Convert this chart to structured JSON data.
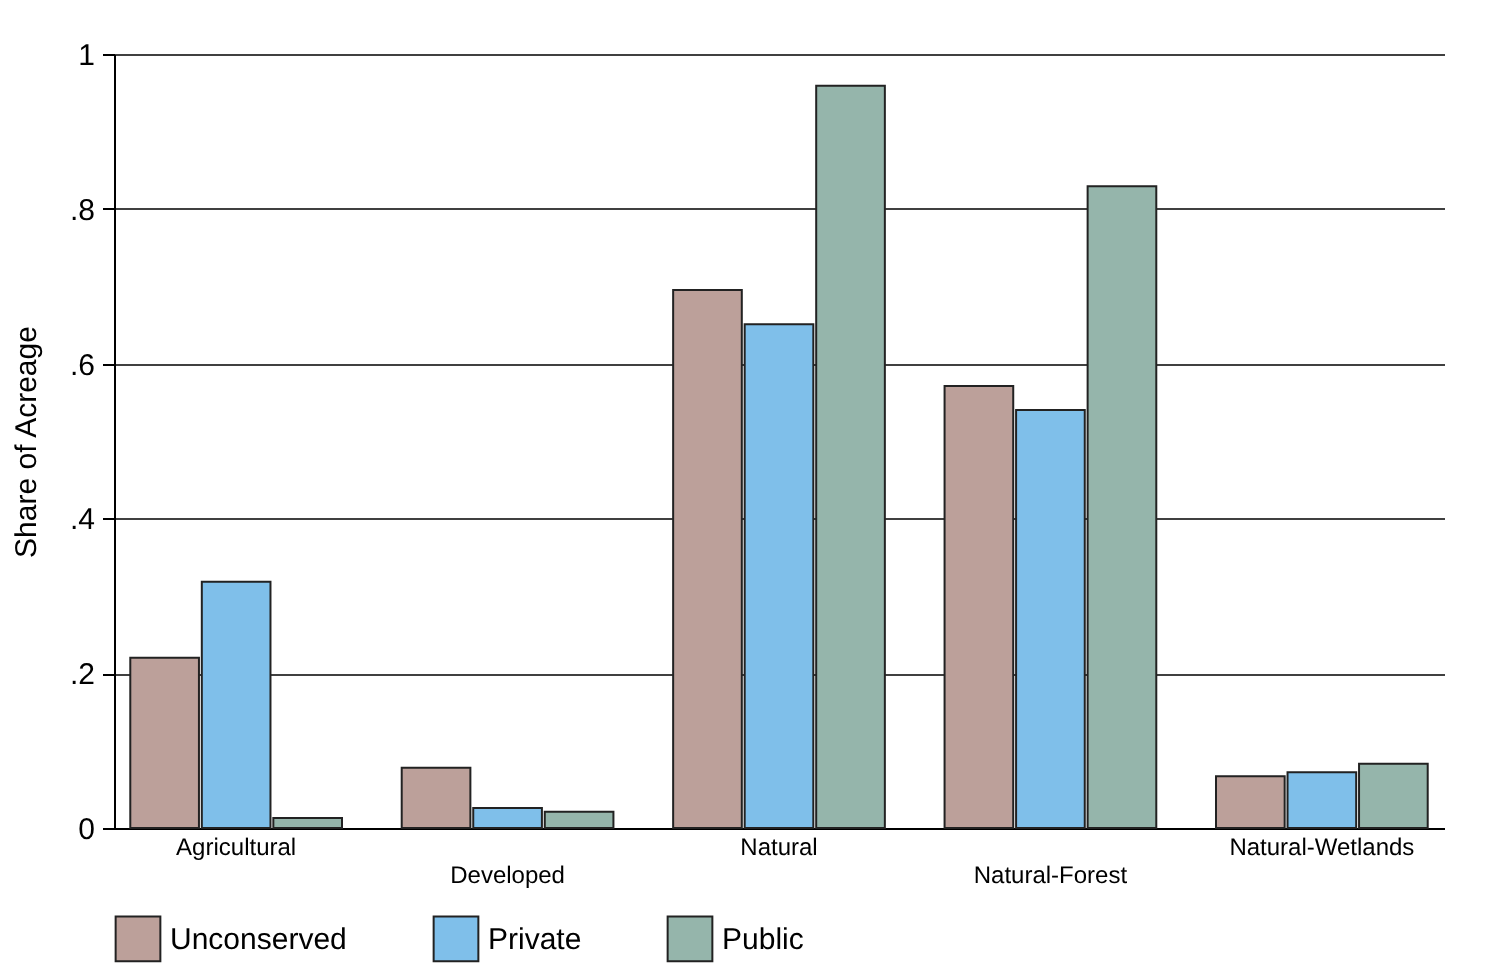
{
  "chart_data": {
    "type": "bar",
    "ylabel": "Share of Acreage",
    "categories": [
      "Agricultural",
      "Developed",
      "Natural",
      "Natural-Forest",
      "Natural-Wetlands"
    ],
    "series": [
      {
        "name": "Unconserved",
        "color": "#bca09a",
        "values": [
          0.22,
          0.078,
          0.695,
          0.571,
          0.067
        ]
      },
      {
        "name": "Private",
        "color": "#7fbfea",
        "values": [
          0.318,
          0.026,
          0.651,
          0.54,
          0.072
        ]
      },
      {
        "name": "Public",
        "color": "#95b5ab",
        "values": [
          0.013,
          0.021,
          0.959,
          0.829,
          0.083
        ]
      }
    ],
    "ylim": [
      0,
      1
    ],
    "yticks": [
      {
        "value": 0,
        "label": "0"
      },
      {
        "value": 0.2,
        "label": ".2"
      },
      {
        "value": 0.4,
        "label": ".4"
      },
      {
        "value": 0.6,
        "label": ".6"
      },
      {
        "value": 0.8,
        "label": ".8"
      },
      {
        "value": 1,
        "label": "1"
      }
    ],
    "grid": "y",
    "legend": "bottom"
  }
}
